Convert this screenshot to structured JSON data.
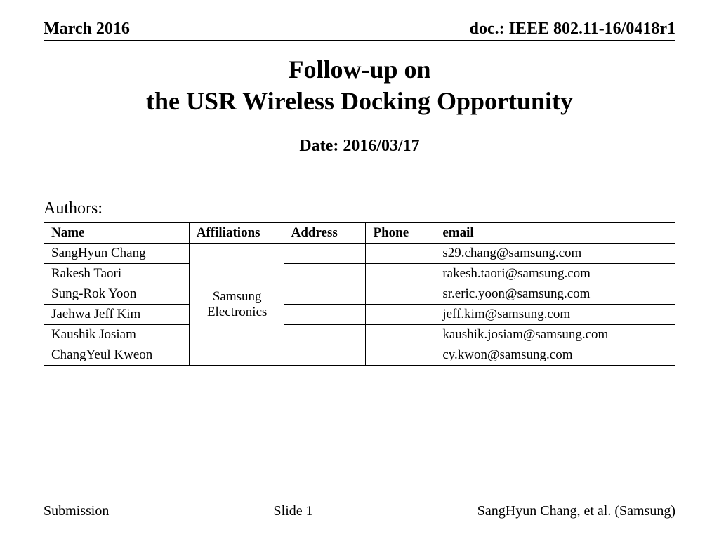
{
  "header": {
    "left": "March 2016",
    "right": "doc.: IEEE 802.11-16/0418r1"
  },
  "title": {
    "line1": "Follow-up on",
    "line2": "the USR Wireless Docking Opportunity"
  },
  "date_label": "Date: 2016/03/17",
  "authors_label": "Authors:",
  "table": {
    "columns": [
      "Name",
      "Affiliations",
      "Address",
      "Phone",
      "email"
    ],
    "affiliation": "Samsung Electronics",
    "rows": [
      {
        "name": "SangHyun Chang",
        "address": "",
        "phone": "",
        "email": "s29.chang@samsung.com"
      },
      {
        "name": "Rakesh Taori",
        "address": "",
        "phone": "",
        "email": "rakesh.taori@samsung.com"
      },
      {
        "name": "Sung-Rok Yoon",
        "address": "",
        "phone": "",
        "email": "sr.eric.yoon@samsung.com"
      },
      {
        "name": "Jaehwa Jeff Kim",
        "address": "",
        "phone": "",
        "email": "jeff.kim@samsung.com"
      },
      {
        "name": "Kaushik Josiam",
        "address": "",
        "phone": "",
        "email": "kaushik.josiam@samsung.com"
      },
      {
        "name": "ChangYeul Kweon",
        "address": "",
        "phone": "",
        "email": "cy.kwon@samsung.com"
      }
    ]
  },
  "footer": {
    "left": "Submission",
    "center": "Slide 1",
    "right": "SangHyun Chang, et al. (Samsung)"
  }
}
